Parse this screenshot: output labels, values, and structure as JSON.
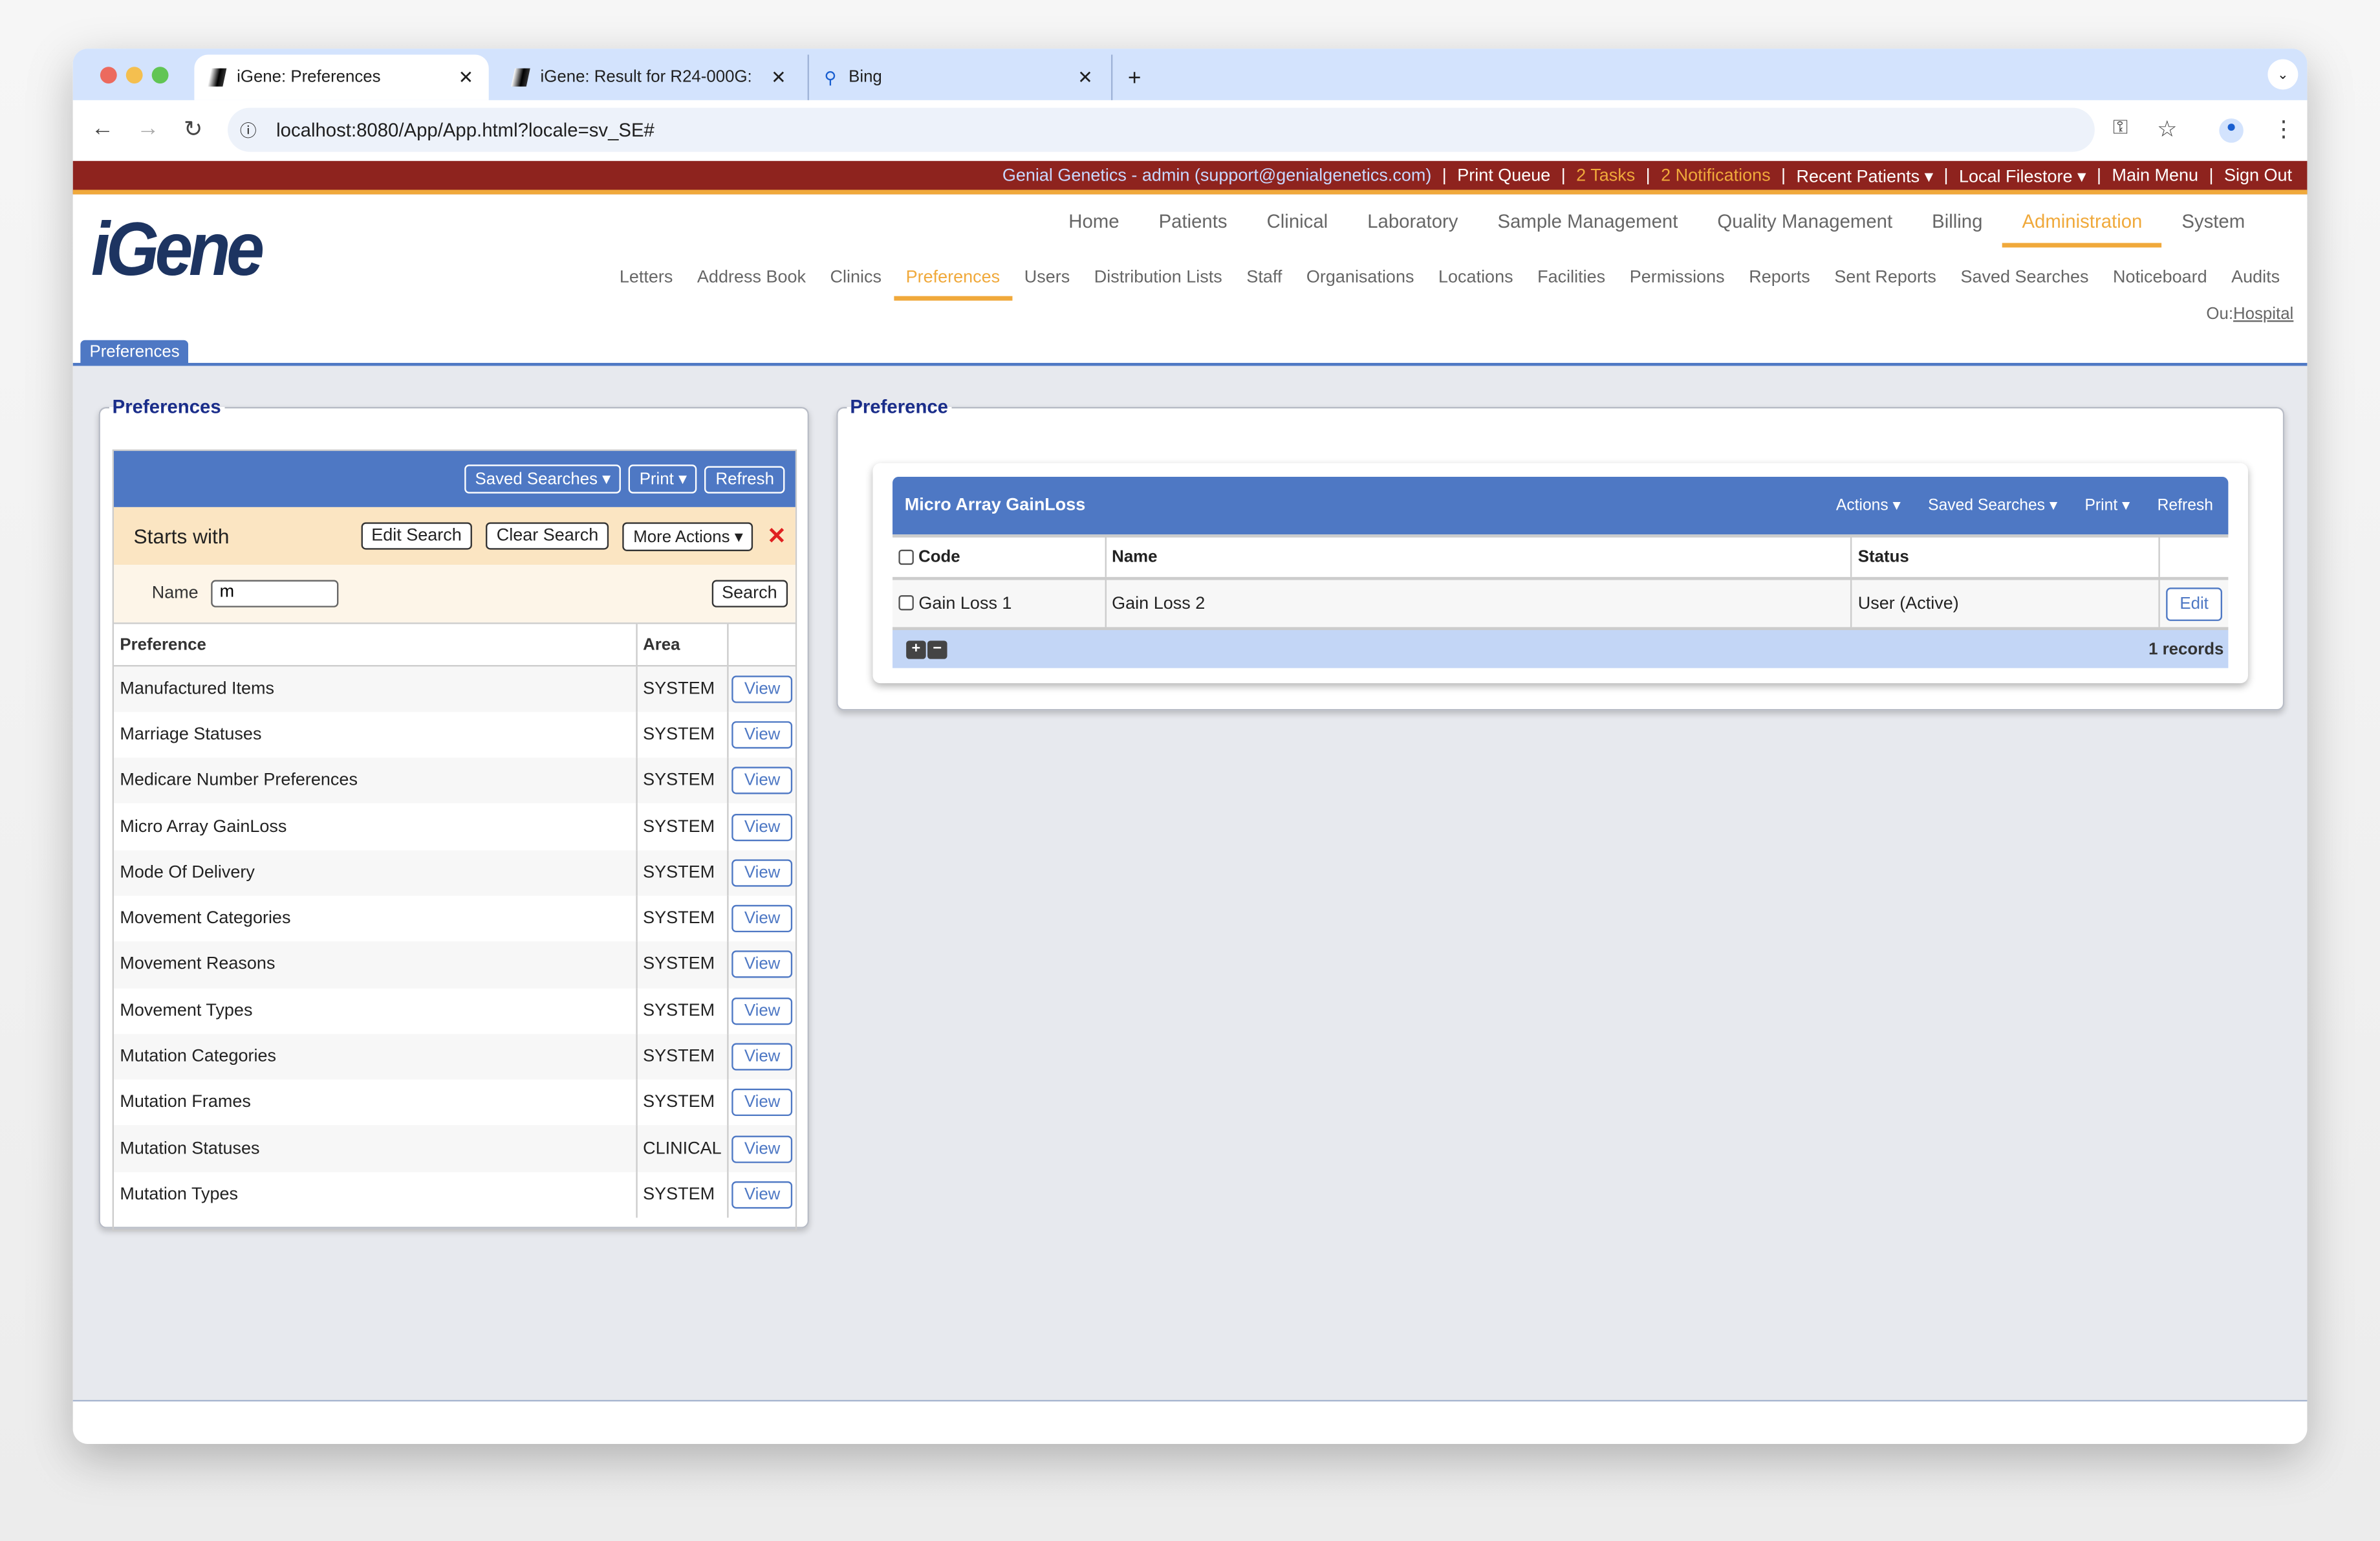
{
  "browser": {
    "tabs": [
      {
        "title": "iGene: Preferences",
        "active": true
      },
      {
        "title": "iGene: Result for R24-000G:"
      },
      {
        "title": "Bing"
      }
    ],
    "new_tab": "+",
    "url": "localhost:8080/App/App.html?locale=sv_SE#"
  },
  "topbar": {
    "user": "Genial Genetics - admin (support@genialgenetics.com)",
    "print_queue": "Print Queue",
    "tasks": "2 Tasks",
    "notifications": "2 Notifications",
    "recent_patients": "Recent Patients ▾",
    "local_filestore": "Local Filestore ▾",
    "main_menu": "Main Menu",
    "sign_out": "Sign Out",
    "separator": "|"
  },
  "logo": "iGene",
  "main_nav": [
    "Home",
    "Patients",
    "Clinical",
    "Laboratory",
    "Sample Management",
    "Quality Management",
    "Billing",
    "Administration",
    "System"
  ],
  "main_nav_selected": "Administration",
  "sub_nav": [
    "Letters",
    "Address Book",
    "Clinics",
    "Preferences",
    "Users",
    "Distribution Lists",
    "Staff",
    "Organisations",
    "Locations",
    "Facilities",
    "Permissions",
    "Reports",
    "Sent Reports",
    "Saved Searches",
    "Noticeboard",
    "Audits"
  ],
  "sub_nav_selected": "Preferences",
  "ou": {
    "label": "Ou:",
    "value": "Hospital"
  },
  "page_tab": "Preferences",
  "left": {
    "legend": "Preferences",
    "toolbar": {
      "saved_searches": "Saved Searches ▾",
      "print": "Print ▾",
      "refresh": "Refresh"
    },
    "search": {
      "title": "Starts with",
      "edit": "Edit Search",
      "clear": "Clear Search",
      "more": "More Actions ▾",
      "name_label": "Name",
      "name_value": "m",
      "search": "Search"
    },
    "columns": [
      "Preference",
      "Area"
    ],
    "view_label": "View",
    "rows": [
      {
        "name": "Manufactured Items",
        "area": "SYSTEM"
      },
      {
        "name": "Marriage Statuses",
        "area": "SYSTEM"
      },
      {
        "name": "Medicare Number Preferences",
        "area": "SYSTEM"
      },
      {
        "name": "Micro Array GainLoss",
        "area": "SYSTEM"
      },
      {
        "name": "Mode Of Delivery",
        "area": "SYSTEM"
      },
      {
        "name": "Movement Categories",
        "area": "SYSTEM"
      },
      {
        "name": "Movement Reasons",
        "area": "SYSTEM"
      },
      {
        "name": "Movement Types",
        "area": "SYSTEM"
      },
      {
        "name": "Mutation Categories",
        "area": "SYSTEM"
      },
      {
        "name": "Mutation Frames",
        "area": "SYSTEM"
      },
      {
        "name": "Mutation Statuses",
        "area": "CLINICAL"
      },
      {
        "name": "Mutation Types",
        "area": "SYSTEM"
      }
    ]
  },
  "right": {
    "legend": "Preference",
    "title": "Micro Array GainLoss",
    "toolbar": {
      "actions": "Actions ▾",
      "saved_searches": "Saved Searches ▾",
      "print": "Print ▾",
      "refresh": "Refresh"
    },
    "columns": [
      "Code",
      "Name",
      "Status"
    ],
    "rows": [
      {
        "code": "Gain Loss 1",
        "name": "Gain Loss 2",
        "status": "User (Active)"
      }
    ],
    "edit_label": "Edit",
    "records": "1 records"
  }
}
